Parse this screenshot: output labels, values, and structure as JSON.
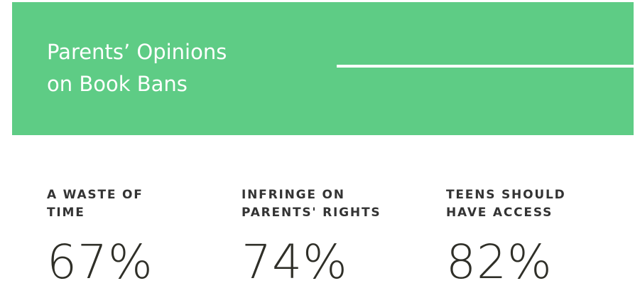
{
  "header": {
    "title_lines": [
      "Parents’ Opinions",
      "on Book Bans"
    ]
  },
  "stats": [
    {
      "label_lines": [
        "A WASTE OF",
        "TIME"
      ],
      "value": "67%"
    },
    {
      "label_lines": [
        "INFRINGE ON",
        "PARENTS' RIGHTS"
      ],
      "value": "74%"
    },
    {
      "label_lines": [
        "TEENS SHOULD",
        "HAVE ACCESS"
      ],
      "value": "82%"
    }
  ]
}
